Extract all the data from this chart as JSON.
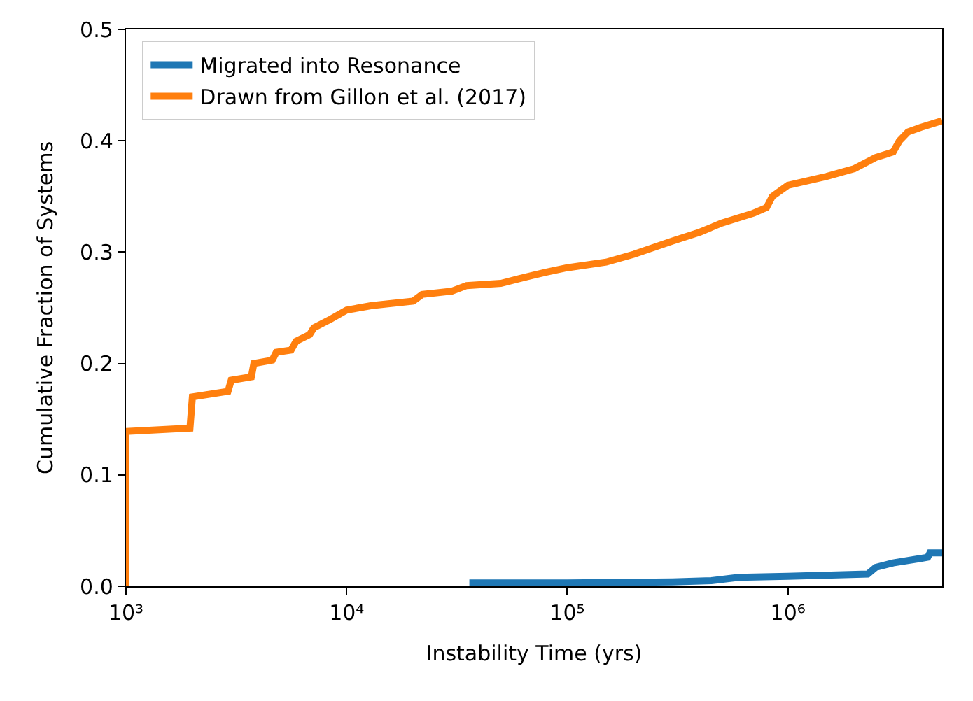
{
  "chart_data": {
    "type": "line",
    "xlabel": "Instability Time (yrs)",
    "ylabel": "Cumulative Fraction of Systems",
    "log": "x",
    "legend": "top left",
    "line_style": "solid",
    "marker": "none",
    "xlim": [
      1000,
      5000000
    ],
    "xticks": [
      {
        "value": 1000,
        "label": "10³"
      },
      {
        "value": 10000,
        "label": "10⁴"
      },
      {
        "value": 100000,
        "label": "10⁵"
      },
      {
        "value": 1000000,
        "label": "10⁶"
      }
    ],
    "ylim": [
      0,
      0.5
    ],
    "yticks": [
      {
        "value": 0,
        "label": "0.0"
      },
      {
        "value": 0.1,
        "label": "0.1"
      },
      {
        "value": 0.2,
        "label": "0.2"
      },
      {
        "value": 0.3,
        "label": "0.3"
      },
      {
        "value": 0.4,
        "label": "0.4"
      },
      {
        "value": 0.5,
        "label": "0.5"
      }
    ],
    "series": [
      {
        "name": "Migrated into Resonance",
        "color": "#1f77b4",
        "x": [
          36000,
          100000,
          300000,
          450000,
          600000,
          1000000,
          2300000,
          2500000,
          3000000,
          4000000,
          4300000,
          4400000,
          5000000
        ],
        "values": [
          0.003,
          0.003,
          0.004,
          0.005,
          0.008,
          0.009,
          0.011,
          0.017,
          0.021,
          0.025,
          0.026,
          0.03,
          0.03
        ]
      },
      {
        "name": "Drawn from Gillon et al. (2017)",
        "color": "#ff7f0e",
        "x": [
          1000,
          1000,
          1950,
          2000,
          2900,
          3000,
          3700,
          3800,
          4600,
          4800,
          5600,
          5900,
          6800,
          7100,
          8500,
          10000,
          13000,
          20000,
          22000,
          30000,
          35000,
          50000,
          60000,
          80000,
          100000,
          150000,
          200000,
          300000,
          400000,
          500000,
          700000,
          800000,
          850000,
          1000000,
          1500000,
          2000000,
          2500000,
          3000000,
          3200000,
          3500000,
          4000000,
          5000000
        ],
        "values": [
          0,
          0.139,
          0.142,
          0.17,
          0.175,
          0.185,
          0.188,
          0.2,
          0.203,
          0.21,
          0.212,
          0.22,
          0.226,
          0.232,
          0.24,
          0.248,
          0.252,
          0.256,
          0.262,
          0.265,
          0.27,
          0.272,
          0.276,
          0.282,
          0.286,
          0.291,
          0.298,
          0.31,
          0.318,
          0.326,
          0.335,
          0.34,
          0.35,
          0.36,
          0.368,
          0.375,
          0.385,
          0.39,
          0.4,
          0.408,
          0.412,
          0.418
        ]
      }
    ]
  }
}
